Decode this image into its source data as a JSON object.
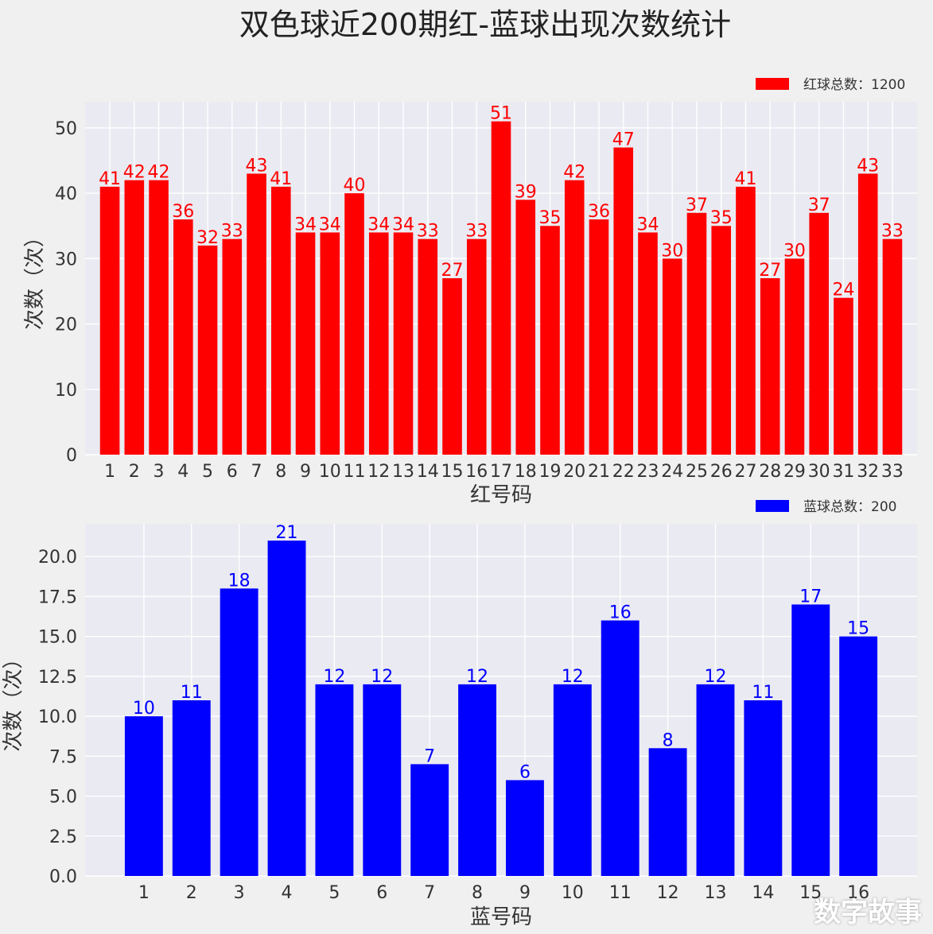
{
  "title": "双色球近200期红-蓝球出现次数统计",
  "watermark": "数字故事",
  "colors": {
    "background": "#f0f0f0",
    "plot_bg": "#eaeaf2",
    "red": "#ff0000",
    "blue": "#0000ff"
  },
  "chart_data": [
    {
      "type": "bar",
      "categories": [
        "1",
        "2",
        "3",
        "4",
        "5",
        "6",
        "7",
        "8",
        "9",
        "10",
        "11",
        "12",
        "13",
        "14",
        "15",
        "16",
        "17",
        "18",
        "19",
        "20",
        "21",
        "22",
        "23",
        "24",
        "25",
        "26",
        "27",
        "28",
        "29",
        "30",
        "31",
        "32",
        "33"
      ],
      "series": [
        {
          "name": "红球总数：1200",
          "color": "#ff0000",
          "values": [
            41,
            42,
            42,
            36,
            32,
            33,
            43,
            41,
            34,
            34,
            40,
            34,
            34,
            33,
            27,
            33,
            51,
            39,
            35,
            42,
            36,
            47,
            34,
            30,
            37,
            35,
            41,
            27,
            30,
            37,
            24,
            43,
            33
          ]
        }
      ],
      "xlabel": "红号码",
      "ylabel": "次数（次）",
      "ylim": [
        0,
        54
      ],
      "yticks": [
        "0",
        "10",
        "20",
        "30",
        "40",
        "50"
      ],
      "ytick_values": [
        0,
        10,
        20,
        30,
        40,
        50
      ],
      "grid": true,
      "legend": "top-right",
      "data_labels": true
    },
    {
      "type": "bar",
      "categories": [
        "1",
        "2",
        "3",
        "4",
        "5",
        "6",
        "7",
        "8",
        "9",
        "10",
        "11",
        "12",
        "13",
        "14",
        "15",
        "16"
      ],
      "series": [
        {
          "name": "蓝球总数：200",
          "color": "#0000ff",
          "values": [
            10,
            11,
            18,
            21,
            12,
            12,
            7,
            12,
            6,
            12,
            16,
            8,
            12,
            11,
            17,
            15
          ]
        }
      ],
      "xlabel": "蓝号码",
      "ylabel": "次数（次）",
      "ylim": [
        0,
        22.05
      ],
      "yticks": [
        "0.0",
        "2.5",
        "5.0",
        "7.5",
        "10.0",
        "12.5",
        "15.0",
        "17.5",
        "20.0"
      ],
      "ytick_values": [
        0,
        2.5,
        5,
        7.5,
        10,
        12.5,
        15,
        17.5,
        20
      ],
      "grid": true,
      "legend": "top-right",
      "data_labels": true
    }
  ]
}
